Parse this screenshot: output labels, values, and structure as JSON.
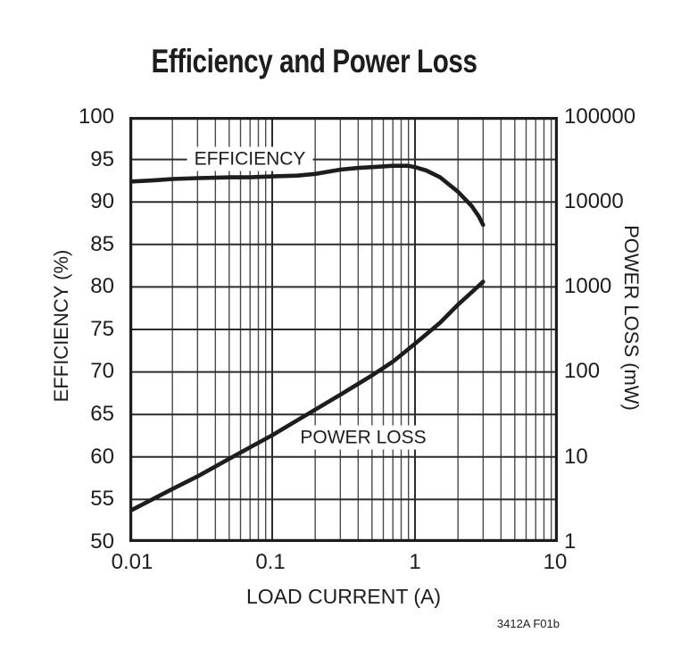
{
  "title": "Efficiency and Power Loss",
  "figure_note": "3412A F01b",
  "colors": {
    "ink": "#1d1d1f",
    "grid_minor": "#4a4a4c",
    "grid_major": "#2c2c2e",
    "background": "#ffffff"
  },
  "chart_data": {
    "type": "line",
    "title": "Efficiency and Power Loss",
    "xlabel": "LOAD CURRENT (A)",
    "x_scale": "log",
    "xlim": [
      0.01,
      10
    ],
    "x_tick_labels": [
      "0.01",
      "0.1",
      "1",
      "10"
    ],
    "grid": true,
    "y_left": {
      "label": "EFFICIENCY (%)",
      "scale": "linear",
      "lim": [
        50,
        100
      ],
      "tick_step": 5,
      "tick_labels": [
        "100",
        "95",
        "90",
        "85",
        "80",
        "75",
        "70",
        "65",
        "60",
        "55",
        "50"
      ]
    },
    "y_right": {
      "label": "POWER LOSS (mW)",
      "scale": "log",
      "lim": [
        1,
        100000
      ],
      "tick_labels": [
        "100000",
        "10000",
        "1000",
        "100",
        "10",
        "1"
      ]
    },
    "series": [
      {
        "name": "EFFICIENCY",
        "axis": "left",
        "units": "%",
        "x": [
          0.01,
          0.015,
          0.02,
          0.03,
          0.05,
          0.07,
          0.1,
          0.15,
          0.2,
          0.3,
          0.4,
          0.5,
          0.7,
          0.9,
          1.0,
          1.2,
          1.5,
          2.0,
          2.5,
          2.8,
          3.0
        ],
        "y": [
          92.4,
          92.55,
          92.7,
          92.8,
          92.9,
          92.9,
          93.0,
          93.1,
          93.3,
          93.8,
          94.0,
          94.1,
          94.25,
          94.25,
          94.1,
          93.7,
          92.9,
          91.2,
          89.5,
          88.3,
          87.3
        ]
      },
      {
        "name": "POWER LOSS",
        "axis": "right",
        "units": "mW",
        "x": [
          0.01,
          0.02,
          0.03,
          0.05,
          0.07,
          0.1,
          0.15,
          0.2,
          0.3,
          0.5,
          0.7,
          1.0,
          1.5,
          2.0,
          2.5,
          3.0
        ],
        "y": [
          2.3,
          4.2,
          5.9,
          9.5,
          13,
          18,
          27,
          36,
          54,
          91,
          132,
          215,
          380,
          620,
          870,
          1150
        ]
      }
    ]
  }
}
